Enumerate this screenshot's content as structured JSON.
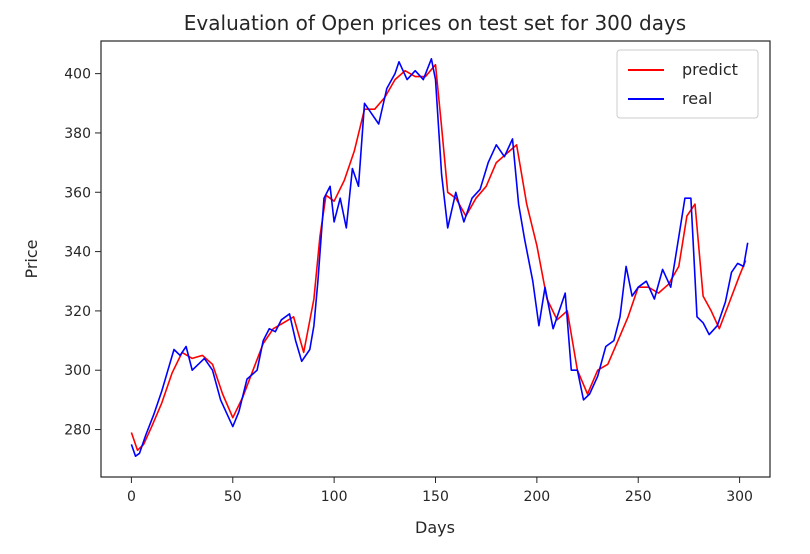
{
  "chart_data": {
    "type": "line",
    "title": "Evaluation of Open prices on test set for 300 days",
    "xlabel": "Days",
    "ylabel": "Price",
    "xlim": [
      -15,
      315
    ],
    "ylim": [
      264,
      411
    ],
    "xticks": [
      0,
      50,
      100,
      150,
      200,
      250,
      300
    ],
    "yticks": [
      280,
      300,
      320,
      340,
      360,
      380,
      400
    ],
    "grid": false,
    "legend": "top-right",
    "series": [
      {
        "name": "predict",
        "color": "#ff0000",
        "points": [
          [
            0,
            279
          ],
          [
            3,
            273
          ],
          [
            6,
            275
          ],
          [
            10,
            281
          ],
          [
            15,
            289
          ],
          [
            20,
            299
          ],
          [
            25,
            306
          ],
          [
            30,
            304
          ],
          [
            35,
            305
          ],
          [
            40,
            302
          ],
          [
            45,
            292
          ],
          [
            50,
            284
          ],
          [
            55,
            291
          ],
          [
            60,
            300
          ],
          [
            65,
            309
          ],
          [
            70,
            314
          ],
          [
            75,
            316
          ],
          [
            80,
            318
          ],
          [
            85,
            306
          ],
          [
            90,
            324
          ],
          [
            93,
            345
          ],
          [
            96,
            359
          ],
          [
            100,
            357
          ],
          [
            105,
            364
          ],
          [
            110,
            374
          ],
          [
            115,
            388
          ],
          [
            120,
            388
          ],
          [
            125,
            392
          ],
          [
            130,
            398
          ],
          [
            135,
            401
          ],
          [
            140,
            399
          ],
          [
            145,
            399
          ],
          [
            150,
            403
          ],
          [
            153,
            382
          ],
          [
            156,
            360
          ],
          [
            160,
            358
          ],
          [
            165,
            352
          ],
          [
            170,
            358
          ],
          [
            175,
            362
          ],
          [
            180,
            370
          ],
          [
            185,
            373
          ],
          [
            190,
            376
          ],
          [
            195,
            356
          ],
          [
            200,
            342
          ],
          [
            205,
            324
          ],
          [
            210,
            317
          ],
          [
            215,
            320
          ],
          [
            220,
            300
          ],
          [
            225,
            292
          ],
          [
            230,
            300
          ],
          [
            235,
            302
          ],
          [
            240,
            310
          ],
          [
            245,
            318
          ],
          [
            250,
            328
          ],
          [
            255,
            328
          ],
          [
            260,
            326
          ],
          [
            265,
            329
          ],
          [
            270,
            335
          ],
          [
            274,
            352
          ],
          [
            278,
            356
          ],
          [
            282,
            325
          ],
          [
            286,
            320
          ],
          [
            290,
            314
          ],
          [
            295,
            323
          ],
          [
            300,
            332
          ],
          [
            303,
            337
          ]
        ]
      },
      {
        "name": "real",
        "color": "#0000ff",
        "points": [
          [
            0,
            275
          ],
          [
            2,
            271
          ],
          [
            4,
            272
          ],
          [
            7,
            278
          ],
          [
            11,
            285
          ],
          [
            15,
            293
          ],
          [
            18,
            300
          ],
          [
            21,
            307
          ],
          [
            24,
            305
          ],
          [
            27,
            308
          ],
          [
            30,
            300
          ],
          [
            33,
            302
          ],
          [
            36,
            304
          ],
          [
            40,
            300
          ],
          [
            44,
            290
          ],
          [
            48,
            284
          ],
          [
            50,
            281
          ],
          [
            53,
            286
          ],
          [
            57,
            297
          ],
          [
            62,
            300
          ],
          [
            65,
            310
          ],
          [
            68,
            314
          ],
          [
            71,
            313
          ],
          [
            74,
            317
          ],
          [
            78,
            319
          ],
          [
            81,
            310
          ],
          [
            84,
            303
          ],
          [
            88,
            307
          ],
          [
            90,
            315
          ],
          [
            92,
            330
          ],
          [
            95,
            358
          ],
          [
            98,
            362
          ],
          [
            100,
            350
          ],
          [
            103,
            358
          ],
          [
            106,
            348
          ],
          [
            109,
            368
          ],
          [
            112,
            362
          ],
          [
            115,
            390
          ],
          [
            118,
            387
          ],
          [
            122,
            383
          ],
          [
            126,
            395
          ],
          [
            130,
            400
          ],
          [
            132,
            404
          ],
          [
            136,
            398
          ],
          [
            140,
            401
          ],
          [
            144,
            398
          ],
          [
            148,
            405
          ],
          [
            150,
            398
          ],
          [
            153,
            366
          ],
          [
            156,
            348
          ],
          [
            160,
            360
          ],
          [
            164,
            350
          ],
          [
            168,
            358
          ],
          [
            172,
            361
          ],
          [
            176,
            370
          ],
          [
            180,
            376
          ],
          [
            184,
            372
          ],
          [
            188,
            378
          ],
          [
            191,
            356
          ],
          [
            194,
            344
          ],
          [
            198,
            330
          ],
          [
            201,
            315
          ],
          [
            204,
            328
          ],
          [
            208,
            314
          ],
          [
            211,
            320
          ],
          [
            214,
            326
          ],
          [
            217,
            300
          ],
          [
            220,
            300
          ],
          [
            223,
            290
          ],
          [
            226,
            292
          ],
          [
            230,
            298
          ],
          [
            234,
            308
          ],
          [
            238,
            310
          ],
          [
            241,
            318
          ],
          [
            244,
            335
          ],
          [
            247,
            325
          ],
          [
            250,
            328
          ],
          [
            254,
            330
          ],
          [
            258,
            324
          ],
          [
            262,
            334
          ],
          [
            266,
            328
          ],
          [
            270,
            345
          ],
          [
            273,
            358
          ],
          [
            276,
            358
          ],
          [
            279,
            318
          ],
          [
            282,
            316
          ],
          [
            285,
            312
          ],
          [
            289,
            315
          ],
          [
            293,
            323
          ],
          [
            296,
            333
          ],
          [
            299,
            336
          ],
          [
            302,
            335
          ],
          [
            304,
            343
          ]
        ]
      }
    ]
  }
}
